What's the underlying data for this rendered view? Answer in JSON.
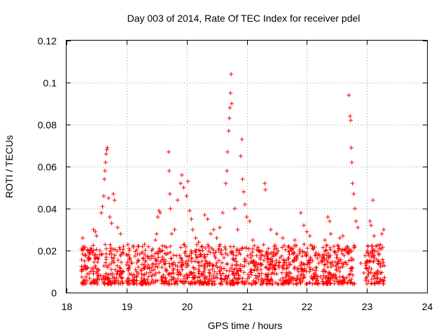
{
  "chart_data": {
    "type": "scatter",
    "title": "Day 003 of 2014, Rate Of TEC Index for receiver pdel",
    "xlabel": "GPS time / hours",
    "ylabel": "ROTI / TECUs",
    "xlim": [
      18,
      24
    ],
    "ylim": [
      0,
      0.12
    ],
    "x_ticks": [
      "18",
      "19",
      "20",
      "21",
      "22",
      "23",
      "24"
    ],
    "y_ticks": [
      "0",
      "0.02",
      "0.04",
      "0.06",
      "0.08",
      "0.1",
      "0.12"
    ],
    "grid": true,
    "marker": "plus",
    "series": [
      {
        "name": "ROTI",
        "color": "#ff0000",
        "points": [
          [
            18.27,
            0.026
          ],
          [
            18.28,
            0.021
          ],
          [
            18.3,
            0.015
          ],
          [
            18.32,
            0.012
          ],
          [
            18.35,
            0.009
          ],
          [
            18.38,
            0.016
          ],
          [
            18.42,
            0.02
          ],
          [
            18.45,
            0.03
          ],
          [
            18.48,
            0.029
          ],
          [
            18.5,
            0.027
          ],
          [
            18.55,
            0.018
          ],
          [
            18.58,
            0.038
          ],
          [
            18.6,
            0.041
          ],
          [
            18.62,
            0.046
          ],
          [
            18.63,
            0.054
          ],
          [
            18.64,
            0.058
          ],
          [
            18.65,
            0.062
          ],
          [
            18.66,
            0.066
          ],
          [
            18.67,
            0.068
          ],
          [
            18.68,
            0.069
          ],
          [
            18.7,
            0.045
          ],
          [
            18.72,
            0.036
          ],
          [
            18.75,
            0.033
          ],
          [
            18.78,
            0.047
          ],
          [
            18.8,
            0.044
          ],
          [
            18.85,
            0.031
          ],
          [
            18.9,
            0.028
          ],
          [
            18.95,
            0.022
          ],
          [
            19.0,
            0.018
          ],
          [
            19.05,
            0.012
          ],
          [
            19.1,
            0.008
          ],
          [
            19.15,
            0.011
          ],
          [
            19.2,
            0.015
          ],
          [
            19.25,
            0.019
          ],
          [
            19.3,
            0.023
          ],
          [
            19.35,
            0.017
          ],
          [
            19.42,
            0.012
          ],
          [
            19.48,
            0.025
          ],
          [
            19.5,
            0.028
          ],
          [
            19.52,
            0.036
          ],
          [
            19.54,
            0.039
          ],
          [
            19.56,
            0.038
          ],
          [
            19.6,
            0.02
          ],
          [
            19.65,
            0.015
          ],
          [
            19.7,
            0.067
          ],
          [
            19.71,
            0.058
          ],
          [
            19.72,
            0.047
          ],
          [
            19.73,
            0.04
          ],
          [
            19.75,
            0.028
          ],
          [
            19.8,
            0.03
          ],
          [
            19.85,
            0.044
          ],
          [
            19.9,
            0.052
          ],
          [
            19.92,
            0.056
          ],
          [
            19.95,
            0.05
          ],
          [
            20.0,
            0.046
          ],
          [
            20.02,
            0.053
          ],
          [
            20.05,
            0.039
          ],
          [
            20.08,
            0.035
          ],
          [
            20.1,
            0.03
          ],
          [
            20.15,
            0.026
          ],
          [
            20.2,
            0.024
          ],
          [
            20.25,
            0.022
          ],
          [
            20.3,
            0.037
          ],
          [
            20.35,
            0.035
          ],
          [
            20.4,
            0.028
          ],
          [
            20.45,
            0.03
          ],
          [
            20.5,
            0.026
          ],
          [
            20.55,
            0.031
          ],
          [
            20.6,
            0.038
          ],
          [
            20.65,
            0.052
          ],
          [
            20.67,
            0.058
          ],
          [
            20.68,
            0.067
          ],
          [
            20.7,
            0.077
          ],
          [
            20.71,
            0.083
          ],
          [
            20.72,
            0.088
          ],
          [
            20.73,
            0.095
          ],
          [
            20.74,
            0.104
          ],
          [
            20.75,
            0.09
          ],
          [
            20.8,
            0.04
          ],
          [
            20.85,
            0.03
          ],
          [
            20.9,
            0.065
          ],
          [
            20.92,
            0.073
          ],
          [
            20.93,
            0.054
          ],
          [
            20.95,
            0.048
          ],
          [
            20.97,
            0.042
          ],
          [
            21.0,
            0.036
          ],
          [
            21.05,
            0.034
          ],
          [
            21.1,
            0.025
          ],
          [
            21.2,
            0.02
          ],
          [
            21.3,
            0.052
          ],
          [
            21.31,
            0.049
          ],
          [
            21.4,
            0.03
          ],
          [
            21.5,
            0.028
          ],
          [
            21.6,
            0.026
          ],
          [
            21.7,
            0.022
          ],
          [
            21.8,
            0.025
          ],
          [
            21.9,
            0.038
          ],
          [
            21.95,
            0.032
          ],
          [
            22.0,
            0.029
          ],
          [
            22.05,
            0.027
          ],
          [
            22.1,
            0.021
          ],
          [
            22.15,
            0.019
          ],
          [
            22.2,
            0.014
          ],
          [
            22.3,
            0.025
          ],
          [
            22.35,
            0.036
          ],
          [
            22.38,
            0.034
          ],
          [
            22.4,
            0.028
          ],
          [
            22.45,
            0.022
          ],
          [
            22.5,
            0.018
          ],
          [
            22.55,
            0.026
          ],
          [
            22.6,
            0.027
          ],
          [
            22.65,
            0.02
          ],
          [
            22.7,
            0.094
          ],
          [
            22.72,
            0.084
          ],
          [
            22.73,
            0.082
          ],
          [
            22.74,
            0.069
          ],
          [
            22.75,
            0.062
          ],
          [
            22.76,
            0.052
          ],
          [
            22.78,
            0.047
          ],
          [
            22.8,
            0.04
          ],
          [
            22.82,
            0.034
          ],
          [
            22.85,
            0.031
          ],
          [
            22.9,
            0.014
          ],
          [
            23.0,
            0.015
          ],
          [
            23.05,
            0.034
          ],
          [
            23.07,
            0.032
          ],
          [
            23.1,
            0.044
          ],
          [
            23.12,
            0.027
          ],
          [
            23.15,
            0.022
          ],
          [
            23.2,
            0.018
          ],
          [
            23.25,
            0.028
          ],
          [
            23.28,
            0.03
          ]
        ],
        "band_note": "dense cloud of additional samples between 0.004 and 0.022 across 18.25-23.3 h"
      }
    ]
  }
}
